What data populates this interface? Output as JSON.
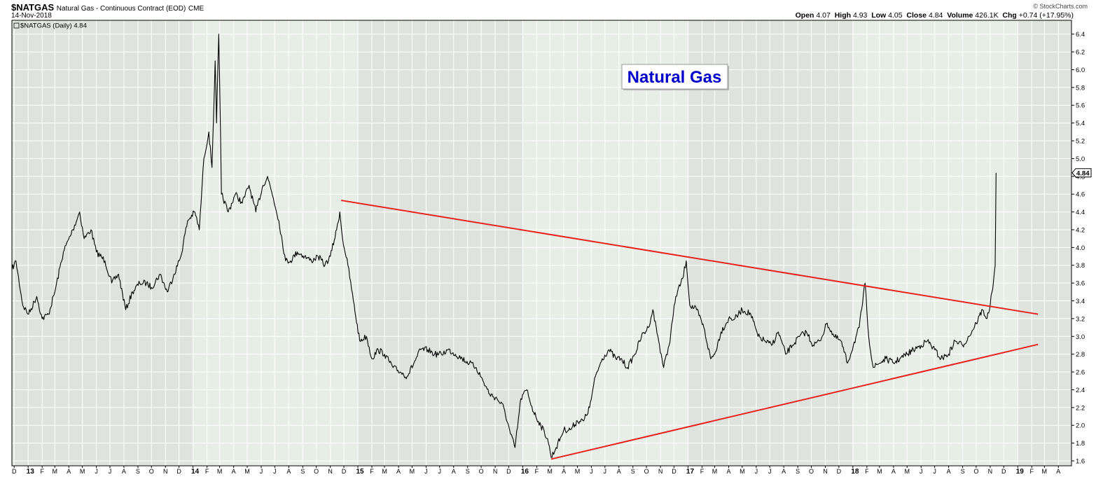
{
  "header": {
    "symbol": "$NATGAS",
    "description": "Natural Gas - Continuous Contract (EOD)",
    "exchange": "CME",
    "date": "14-Nov-2018",
    "credit": "© StockCharts.com",
    "open_label": "Open",
    "open": "4.07",
    "high_label": "High",
    "high": "4.93",
    "low_label": "Low",
    "low": "4.05",
    "close_label": "Close",
    "close": "4.84",
    "volume_label": "Volume",
    "volume": "426.1K",
    "chg_label": "Chg",
    "chg": "+0.74 (+17.95%)"
  },
  "colors": {
    "plot_bg": "#e7eee6",
    "shade_bg": "#dee4dd",
    "grid": "#ffffff",
    "price_line": "#000000",
    "trend_line": "#e8231f",
    "annotation_text": "#0000cc"
  },
  "chart_data": {
    "type": "line",
    "series_label": "$NATGAS (Daily) 4.84",
    "last_value_label": "4.84",
    "annotation": "Natural Gas",
    "ylim": [
      1.6,
      6.5
    ],
    "yticks": [
      "1.6",
      "1.8",
      "2.0",
      "2.2",
      "2.4",
      "2.6",
      "2.8",
      "3.0",
      "3.2",
      "3.4",
      "3.6",
      "3.8",
      "4.0",
      "4.2",
      "4.4",
      "4.6",
      "4.8",
      "5.0",
      "5.2",
      "5.4",
      "5.6",
      "5.8",
      "6.0",
      "6.2",
      "6.4"
    ],
    "xlim": [
      "2012-11-26",
      "2019-04-30"
    ],
    "xticks": [
      {
        "date": "2012-12-01",
        "label": "D"
      },
      {
        "date": "2013-01-01",
        "label": "13",
        "year": true
      },
      {
        "date": "2013-02-01",
        "label": "F"
      },
      {
        "date": "2013-03-01",
        "label": "M"
      },
      {
        "date": "2013-04-01",
        "label": "A"
      },
      {
        "date": "2013-05-01",
        "label": "M"
      },
      {
        "date": "2013-06-01",
        "label": "J"
      },
      {
        "date": "2013-07-01",
        "label": "J"
      },
      {
        "date": "2013-08-01",
        "label": "A"
      },
      {
        "date": "2013-09-01",
        "label": "S"
      },
      {
        "date": "2013-10-01",
        "label": "O"
      },
      {
        "date": "2013-11-01",
        "label": "N"
      },
      {
        "date": "2013-12-01",
        "label": "D"
      },
      {
        "date": "2014-01-01",
        "label": "14",
        "year": true
      },
      {
        "date": "2014-02-01",
        "label": "F"
      },
      {
        "date": "2014-03-01",
        "label": "M"
      },
      {
        "date": "2014-04-01",
        "label": "A"
      },
      {
        "date": "2014-05-01",
        "label": "M"
      },
      {
        "date": "2014-06-01",
        "label": "J"
      },
      {
        "date": "2014-07-01",
        "label": "J"
      },
      {
        "date": "2014-08-01",
        "label": "A"
      },
      {
        "date": "2014-09-01",
        "label": "S"
      },
      {
        "date": "2014-10-01",
        "label": "O"
      },
      {
        "date": "2014-11-01",
        "label": "N"
      },
      {
        "date": "2014-12-01",
        "label": "D"
      },
      {
        "date": "2015-01-01",
        "label": "15",
        "year": true
      },
      {
        "date": "2015-02-01",
        "label": "F"
      },
      {
        "date": "2015-03-01",
        "label": "M"
      },
      {
        "date": "2015-04-01",
        "label": "A"
      },
      {
        "date": "2015-05-01",
        "label": "M"
      },
      {
        "date": "2015-06-01",
        "label": "J"
      },
      {
        "date": "2015-07-01",
        "label": "J"
      },
      {
        "date": "2015-08-01",
        "label": "A"
      },
      {
        "date": "2015-09-01",
        "label": "S"
      },
      {
        "date": "2015-10-01",
        "label": "O"
      },
      {
        "date": "2015-11-01",
        "label": "N"
      },
      {
        "date": "2015-12-01",
        "label": "D"
      },
      {
        "date": "2016-01-01",
        "label": "16",
        "year": true
      },
      {
        "date": "2016-02-01",
        "label": "F"
      },
      {
        "date": "2016-03-01",
        "label": "M"
      },
      {
        "date": "2016-04-01",
        "label": "A"
      },
      {
        "date": "2016-05-01",
        "label": "M"
      },
      {
        "date": "2016-06-01",
        "label": "J"
      },
      {
        "date": "2016-07-01",
        "label": "J"
      },
      {
        "date": "2016-08-01",
        "label": "A"
      },
      {
        "date": "2016-09-01",
        "label": "S"
      },
      {
        "date": "2016-10-01",
        "label": "O"
      },
      {
        "date": "2016-11-01",
        "label": "N"
      },
      {
        "date": "2016-12-01",
        "label": "D"
      },
      {
        "date": "2017-01-01",
        "label": "17",
        "year": true
      },
      {
        "date": "2017-02-01",
        "label": "F"
      },
      {
        "date": "2017-03-01",
        "label": "M"
      },
      {
        "date": "2017-04-01",
        "label": "A"
      },
      {
        "date": "2017-05-01",
        "label": "M"
      },
      {
        "date": "2017-06-01",
        "label": "J"
      },
      {
        "date": "2017-07-01",
        "label": "J"
      },
      {
        "date": "2017-08-01",
        "label": "A"
      },
      {
        "date": "2017-09-01",
        "label": "S"
      },
      {
        "date": "2017-10-01",
        "label": "O"
      },
      {
        "date": "2017-11-01",
        "label": "N"
      },
      {
        "date": "2017-12-01",
        "label": "D"
      },
      {
        "date": "2018-01-01",
        "label": "18",
        "year": true
      },
      {
        "date": "2018-02-01",
        "label": "F"
      },
      {
        "date": "2018-03-01",
        "label": "M"
      },
      {
        "date": "2018-04-01",
        "label": "A"
      },
      {
        "date": "2018-05-01",
        "label": "M"
      },
      {
        "date": "2018-06-01",
        "label": "J"
      },
      {
        "date": "2018-07-01",
        "label": "J"
      },
      {
        "date": "2018-08-01",
        "label": "A"
      },
      {
        "date": "2018-09-01",
        "label": "S"
      },
      {
        "date": "2018-10-01",
        "label": "O"
      },
      {
        "date": "2018-11-01",
        "label": "N"
      },
      {
        "date": "2018-12-01",
        "label": "D"
      },
      {
        "date": "2019-01-01",
        "label": "19",
        "year": true
      },
      {
        "date": "2019-02-01",
        "label": "F"
      },
      {
        "date": "2019-03-01",
        "label": "M"
      },
      {
        "date": "2019-04-01",
        "label": "A"
      }
    ],
    "price": [
      [
        "2012-11-26",
        3.75
      ],
      [
        "2012-12-05",
        3.85
      ],
      [
        "2012-12-20",
        3.35
      ],
      [
        "2013-01-02",
        3.25
      ],
      [
        "2013-01-20",
        3.45
      ],
      [
        "2013-02-01",
        3.2
      ],
      [
        "2013-02-15",
        3.25
      ],
      [
        "2013-03-01",
        3.5
      ],
      [
        "2013-03-20",
        3.95
      ],
      [
        "2013-04-10",
        4.2
      ],
      [
        "2013-04-25",
        4.4
      ],
      [
        "2013-05-05",
        4.1
      ],
      [
        "2013-05-20",
        4.2
      ],
      [
        "2013-06-01",
        3.95
      ],
      [
        "2013-06-20",
        3.85
      ],
      [
        "2013-07-05",
        3.6
      ],
      [
        "2013-07-20",
        3.7
      ],
      [
        "2013-08-05",
        3.3
      ],
      [
        "2013-08-20",
        3.5
      ],
      [
        "2013-09-05",
        3.6
      ],
      [
        "2013-09-20",
        3.6
      ],
      [
        "2013-10-01",
        3.55
      ],
      [
        "2013-10-20",
        3.7
      ],
      [
        "2013-11-05",
        3.5
      ],
      [
        "2013-11-20",
        3.7
      ],
      [
        "2013-12-05",
        3.9
      ],
      [
        "2013-12-20",
        4.3
      ],
      [
        "2014-01-05",
        4.4
      ],
      [
        "2014-01-15",
        4.2
      ],
      [
        "2014-01-25",
        5.0
      ],
      [
        "2014-02-05",
        5.3
      ],
      [
        "2014-02-12",
        4.9
      ],
      [
        "2014-02-19",
        6.1
      ],
      [
        "2014-02-22",
        5.4
      ],
      [
        "2014-02-27",
        6.4
      ],
      [
        "2014-03-05",
        4.6
      ],
      [
        "2014-03-20",
        4.4
      ],
      [
        "2014-04-05",
        4.6
      ],
      [
        "2014-04-20",
        4.5
      ],
      [
        "2014-05-05",
        4.7
      ],
      [
        "2014-05-20",
        4.4
      ],
      [
        "2014-06-05",
        4.7
      ],
      [
        "2014-06-15",
        4.8
      ],
      [
        "2014-06-28",
        4.55
      ],
      [
        "2014-07-10",
        4.3
      ],
      [
        "2014-07-25",
        3.85
      ],
      [
        "2014-08-05",
        3.85
      ],
      [
        "2014-08-20",
        3.95
      ],
      [
        "2014-09-05",
        3.9
      ],
      [
        "2014-09-20",
        3.85
      ],
      [
        "2014-10-05",
        3.9
      ],
      [
        "2014-10-20",
        3.8
      ],
      [
        "2014-11-01",
        3.9
      ],
      [
        "2014-11-15",
        4.2
      ],
      [
        "2014-11-22",
        4.4
      ],
      [
        "2014-11-28",
        4.1
      ],
      [
        "2014-12-10",
        3.8
      ],
      [
        "2014-12-22",
        3.4
      ],
      [
        "2015-01-05",
        2.95
      ],
      [
        "2015-01-20",
        3.0
      ],
      [
        "2015-02-01",
        2.75
      ],
      [
        "2015-02-15",
        2.85
      ],
      [
        "2015-03-01",
        2.8
      ],
      [
        "2015-03-20",
        2.65
      ],
      [
        "2015-04-05",
        2.6
      ],
      [
        "2015-04-20",
        2.55
      ],
      [
        "2015-05-05",
        2.7
      ],
      [
        "2015-05-20",
        2.85
      ],
      [
        "2015-06-05",
        2.85
      ],
      [
        "2015-06-20",
        2.8
      ],
      [
        "2015-07-05",
        2.8
      ],
      [
        "2015-07-20",
        2.85
      ],
      [
        "2015-08-05",
        2.8
      ],
      [
        "2015-08-20",
        2.75
      ],
      [
        "2015-09-05",
        2.7
      ],
      [
        "2015-09-20",
        2.65
      ],
      [
        "2015-10-05",
        2.5
      ],
      [
        "2015-10-20",
        2.35
      ],
      [
        "2015-11-05",
        2.3
      ],
      [
        "2015-11-20",
        2.2
      ],
      [
        "2015-12-05",
        1.9
      ],
      [
        "2015-12-15",
        1.75
      ],
      [
        "2015-12-28",
        2.3
      ],
      [
        "2016-01-10",
        2.4
      ],
      [
        "2016-01-25",
        2.15
      ],
      [
        "2016-02-10",
        2.0
      ],
      [
        "2016-02-25",
        1.85
      ],
      [
        "2016-03-04",
        1.64
      ],
      [
        "2016-03-15",
        1.75
      ],
      [
        "2016-04-01",
        1.95
      ],
      [
        "2016-04-15",
        1.95
      ],
      [
        "2016-05-01",
        2.05
      ],
      [
        "2016-05-15",
        2.05
      ],
      [
        "2016-05-28",
        2.2
      ],
      [
        "2016-06-10",
        2.55
      ],
      [
        "2016-06-25",
        2.75
      ],
      [
        "2016-07-10",
        2.85
      ],
      [
        "2016-07-25",
        2.75
      ],
      [
        "2016-08-05",
        2.75
      ],
      [
        "2016-08-20",
        2.65
      ],
      [
        "2016-09-05",
        2.8
      ],
      [
        "2016-09-20",
        3.0
      ],
      [
        "2016-10-05",
        3.1
      ],
      [
        "2016-10-15",
        3.3
      ],
      [
        "2016-10-28",
        2.95
      ],
      [
        "2016-11-08",
        2.65
      ],
      [
        "2016-11-20",
        2.9
      ],
      [
        "2016-12-05",
        3.45
      ],
      [
        "2016-12-20",
        3.65
      ],
      [
        "2016-12-28",
        3.85
      ],
      [
        "2017-01-05",
        3.35
      ],
      [
        "2017-01-20",
        3.3
      ],
      [
        "2017-02-05",
        3.1
      ],
      [
        "2017-02-20",
        2.75
      ],
      [
        "2017-03-01",
        2.8
      ],
      [
        "2017-03-15",
        3.05
      ],
      [
        "2017-04-01",
        3.2
      ],
      [
        "2017-04-15",
        3.2
      ],
      [
        "2017-05-01",
        3.3
      ],
      [
        "2017-05-20",
        3.25
      ],
      [
        "2017-06-05",
        3.0
      ],
      [
        "2017-06-20",
        2.95
      ],
      [
        "2017-07-05",
        2.9
      ],
      [
        "2017-07-20",
        3.05
      ],
      [
        "2017-08-05",
        2.8
      ],
      [
        "2017-08-20",
        2.9
      ],
      [
        "2017-09-05",
        3.0
      ],
      [
        "2017-09-20",
        3.05
      ],
      [
        "2017-10-05",
        2.9
      ],
      [
        "2017-10-20",
        2.95
      ],
      [
        "2017-11-05",
        3.15
      ],
      [
        "2017-11-20",
        3.0
      ],
      [
        "2017-12-05",
        2.95
      ],
      [
        "2017-12-20",
        2.7
      ],
      [
        "2018-01-02",
        2.9
      ],
      [
        "2018-01-15",
        3.1
      ],
      [
        "2018-01-28",
        3.6
      ],
      [
        "2018-02-05",
        3.0
      ],
      [
        "2018-02-15",
        2.65
      ],
      [
        "2018-03-01",
        2.7
      ],
      [
        "2018-03-15",
        2.75
      ],
      [
        "2018-04-01",
        2.7
      ],
      [
        "2018-04-15",
        2.75
      ],
      [
        "2018-05-01",
        2.8
      ],
      [
        "2018-05-15",
        2.85
      ],
      [
        "2018-06-01",
        2.9
      ],
      [
        "2018-06-15",
        2.95
      ],
      [
        "2018-07-01",
        2.85
      ],
      [
        "2018-07-15",
        2.75
      ],
      [
        "2018-08-01",
        2.8
      ],
      [
        "2018-08-15",
        2.95
      ],
      [
        "2018-09-01",
        2.9
      ],
      [
        "2018-09-15",
        3.0
      ],
      [
        "2018-10-01",
        3.15
      ],
      [
        "2018-10-15",
        3.3
      ],
      [
        "2018-10-25",
        3.2
      ],
      [
        "2018-11-01",
        3.35
      ],
      [
        "2018-11-05",
        3.5
      ],
      [
        "2018-11-08",
        3.6
      ],
      [
        "2018-11-12",
        3.8
      ],
      [
        "2018-11-14",
        4.84
      ]
    ],
    "trendlines": [
      {
        "name": "upper-trendline",
        "x1": "2014-11-25",
        "y1": 4.53,
        "x2": "2019-02-15",
        "y2": 3.25
      },
      {
        "name": "lower-trendline",
        "x1": "2016-03-04",
        "y1": 1.62,
        "x2": "2019-02-15",
        "y2": 2.91
      }
    ]
  }
}
